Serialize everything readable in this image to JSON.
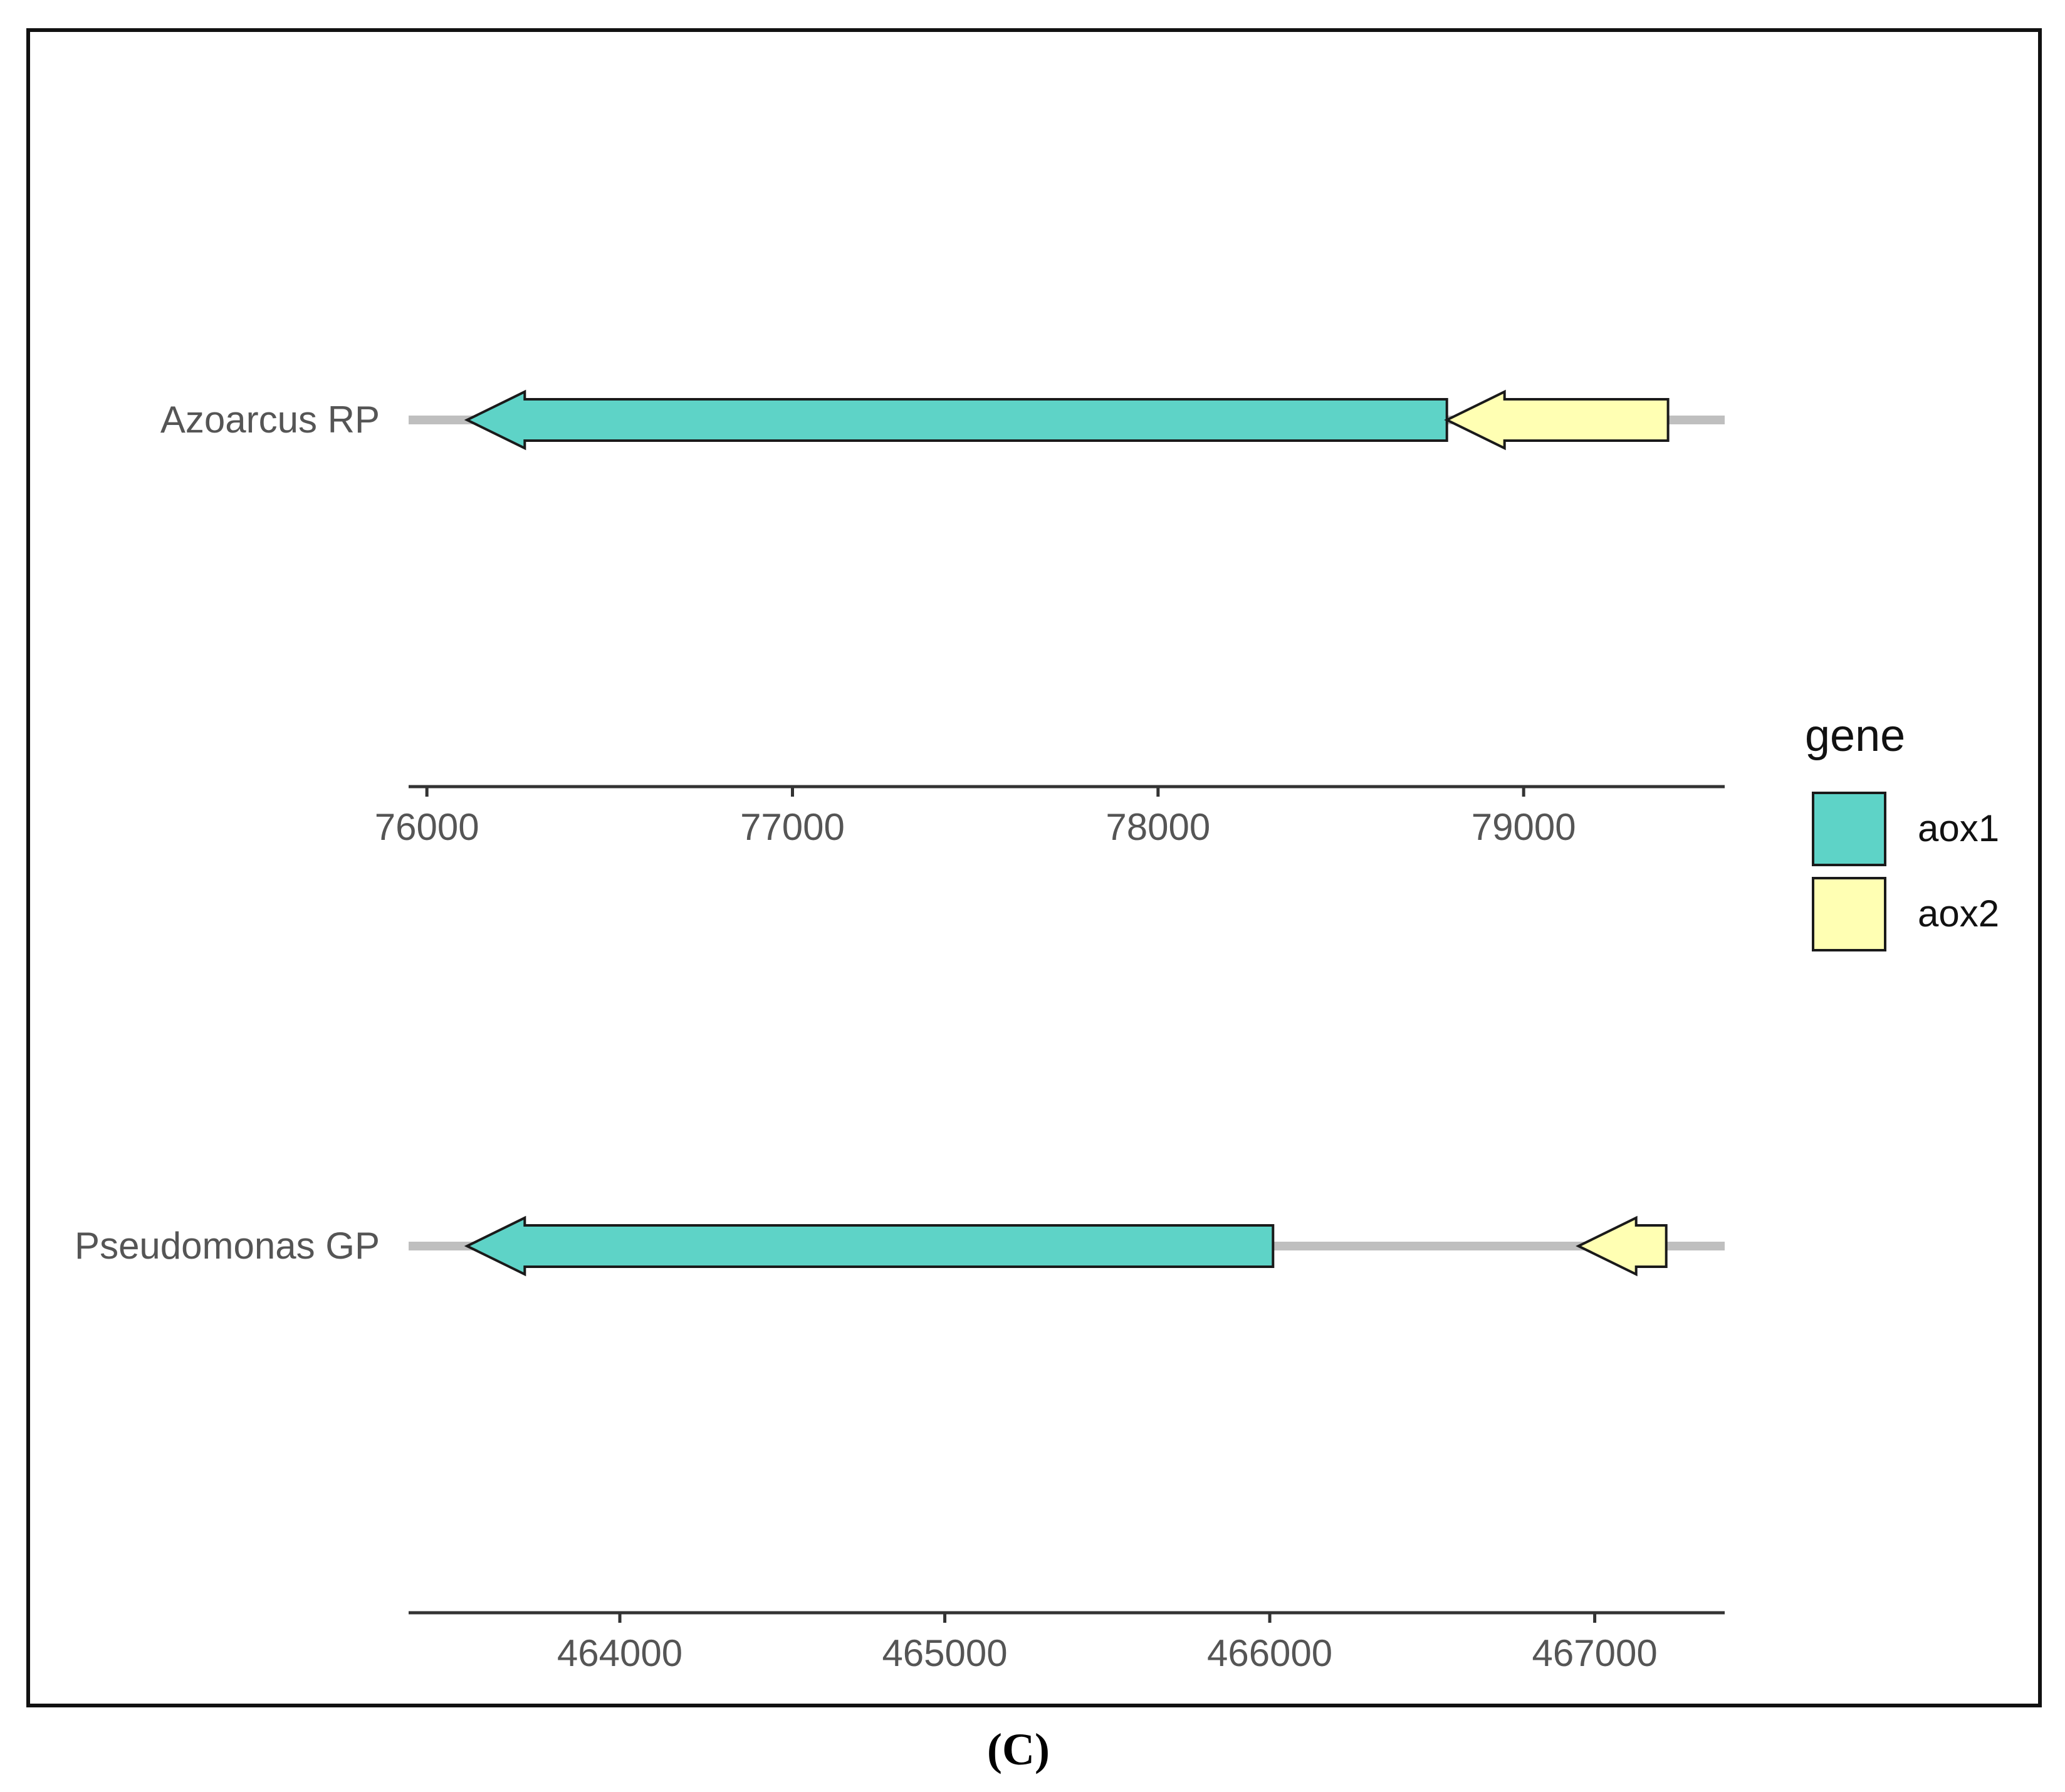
{
  "panel_label": "(C)",
  "colors": {
    "aox1": "#5ed3c7",
    "aox2": "#ffffb3",
    "track": "#bfbfbf",
    "axis": "#333333",
    "outline": "#1a1a1a"
  },
  "chart_data": [
    {
      "type": "gene-arrow",
      "genome": "Azoarcus RP",
      "xlim": [
        75950,
        79550
      ],
      "ticks": [
        76000,
        77000,
        78000,
        79000
      ],
      "tick_labels": [
        "76000",
        "77000",
        "78000",
        "79000"
      ],
      "track": [
        75950,
        79550
      ],
      "genes": [
        {
          "gene": "aox1",
          "start": 78790,
          "end": 76110,
          "strand": "-"
        },
        {
          "gene": "aox2",
          "start": 79395,
          "end": 78790,
          "strand": "-"
        }
      ]
    },
    {
      "type": "gene-arrow",
      "genome": "Pseudomonas GP",
      "xlim": [
        463350,
        467400
      ],
      "ticks": [
        464000,
        465000,
        466000,
        467000
      ],
      "tick_labels": [
        "464000",
        "465000",
        "466000",
        "467000"
      ],
      "track": [
        463350,
        467400
      ],
      "genes": [
        {
          "gene": "aox1",
          "start": 466010,
          "end": 463530,
          "strand": "-"
        },
        {
          "gene": "aox2",
          "start": 467220,
          "end": 466950,
          "strand": "-"
        }
      ]
    }
  ],
  "legend": {
    "title": "gene",
    "position": "right",
    "items": [
      {
        "label": "aox1",
        "gene": "aox1"
      },
      {
        "label": "aox2",
        "gene": "aox2"
      }
    ]
  }
}
